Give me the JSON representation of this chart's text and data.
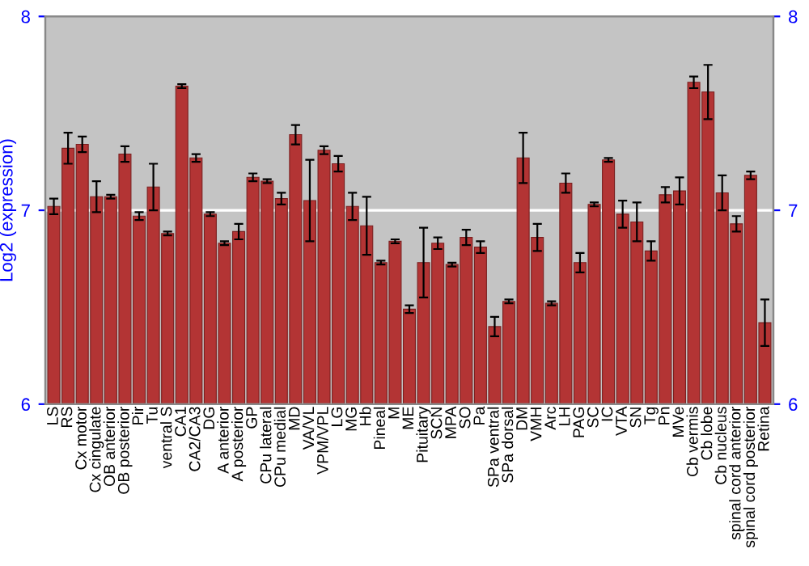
{
  "chart_data": {
    "type": "bar",
    "ylabel": "Log2 (expression)",
    "categories": [
      "LS",
      "RS",
      "Cx motor",
      "Cx cingulate",
      "OB anterior",
      "OB posterior",
      "Pir",
      "Tu",
      "ventral S",
      "CA1",
      "CA2/CA3",
      "DG",
      "A anterior",
      "A posterior",
      "GP",
      "CPu lateral",
      "CPu medial",
      "MD",
      "VA/VL",
      "VPM/VPL",
      "LG",
      "MG",
      "Hb",
      "Pineal",
      "M",
      "ME",
      "Pituitary",
      "SCN",
      "MPA",
      "SO",
      "Pa",
      "SPa ventral",
      "SPa dorsal",
      "DM",
      "VMH",
      "Arc",
      "LH",
      "PAG",
      "SC",
      "IC",
      "VTA",
      "SN",
      "Tg",
      "Pn",
      "MVe",
      "Cb vermis",
      "Cb lobe",
      "Cb nucleus",
      "spinal cord anterior",
      "spinal cord posterior",
      "Retina"
    ],
    "values": [
      7.02,
      7.32,
      7.34,
      7.07,
      7.07,
      7.29,
      6.97,
      7.12,
      6.88,
      7.64,
      7.27,
      6.98,
      6.83,
      6.89,
      7.17,
      7.15,
      7.06,
      7.39,
      7.05,
      7.31,
      7.24,
      7.02,
      6.92,
      6.73,
      6.84,
      6.49,
      6.73,
      6.83,
      6.72,
      6.86,
      6.81,
      6.4,
      6.53,
      7.27,
      6.86,
      6.52,
      7.14,
      6.73,
      7.03,
      7.26,
      6.98,
      6.94,
      6.79,
      7.08,
      7.1,
      7.66,
      7.61,
      7.09,
      6.93,
      7.18,
      6.42
    ],
    "errors": [
      0.04,
      0.08,
      0.04,
      0.08,
      0.01,
      0.04,
      0.02,
      0.12,
      0.01,
      0.01,
      0.02,
      0.01,
      0.01,
      0.04,
      0.02,
      0.01,
      0.03,
      0.05,
      0.21,
      0.02,
      0.04,
      0.07,
      0.15,
      0.01,
      0.01,
      0.02,
      0.18,
      0.03,
      0.01,
      0.04,
      0.03,
      0.05,
      0.01,
      0.13,
      0.07,
      0.01,
      0.05,
      0.05,
      0.01,
      0.01,
      0.07,
      0.1,
      0.05,
      0.04,
      0.07,
      0.03,
      0.14,
      0.09,
      0.04,
      0.02,
      0.12
    ],
    "color": "#b33434",
    "ylim": [
      6,
      8
    ],
    "yticks": [
      6,
      7,
      8
    ],
    "y2lim": [
      6,
      8
    ],
    "y2ticks": [
      6,
      7,
      8
    ],
    "grid": "y"
  }
}
